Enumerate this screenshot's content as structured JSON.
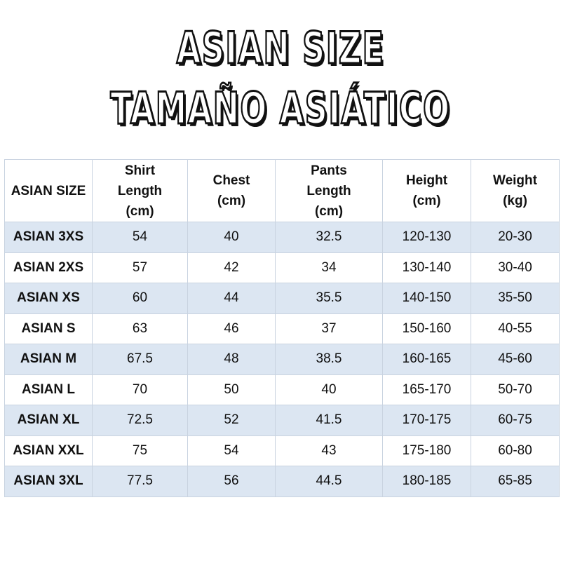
{
  "title": {
    "line1": "ASIAN SIZE",
    "line2": "TAMAÑO ASIÁTICO"
  },
  "table": {
    "header": [
      [
        "ASIAN SIZE"
      ],
      [
        "Shirt",
        "Length",
        "(cm)"
      ],
      [
        "Chest",
        "(cm)"
      ],
      [
        "Pants",
        "Length",
        "(cm)"
      ],
      [
        "Height",
        "(cm)"
      ],
      [
        "Weight",
        "(kg)"
      ]
    ],
    "rows": [
      [
        "ASIAN 3XS",
        "54",
        "40",
        "32.5",
        "120-130",
        "20-30"
      ],
      [
        "ASIAN 2XS",
        "57",
        "42",
        "34",
        "130-140",
        "30-40"
      ],
      [
        "ASIAN XS",
        "60",
        "44",
        "35.5",
        "140-150",
        "35-50"
      ],
      [
        "ASIAN S",
        "63",
        "46",
        "37",
        "150-160",
        "40-55"
      ],
      [
        "ASIAN M",
        "67.5",
        "48",
        "38.5",
        "160-165",
        "45-60"
      ],
      [
        "ASIAN L",
        "70",
        "50",
        "40",
        "165-170",
        "50-70"
      ],
      [
        "ASIAN XL",
        "72.5",
        "52",
        "41.5",
        "170-175",
        "60-75"
      ],
      [
        "ASIAN XXL",
        "75",
        "54",
        "43",
        "175-180",
        "60-80"
      ],
      [
        "ASIAN 3XL",
        "77.5",
        "56",
        "44.5",
        "180-185",
        "65-85"
      ]
    ]
  }
}
